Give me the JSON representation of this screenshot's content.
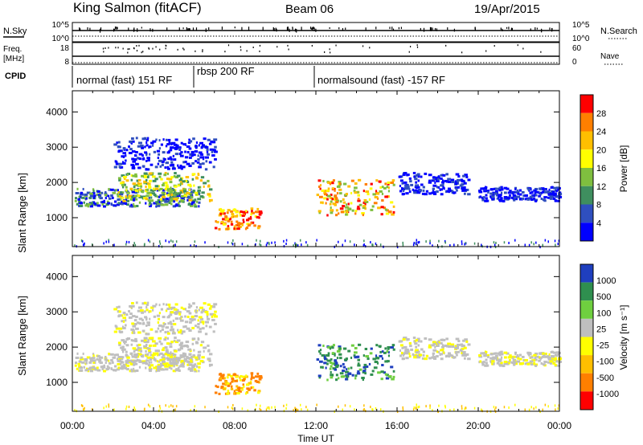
{
  "header": {
    "station": "King Salmon (fitACF)",
    "beam": "Beam 06",
    "date": "19/Apr/2015"
  },
  "summary_rows": {
    "nsky_label": "N.Sky",
    "nsky_ticks": [
      "10^5",
      "10^0"
    ],
    "nsearch_label": "N.Search",
    "nsearch_ticks": [
      "10^5",
      "10^0"
    ],
    "freq_label_1": "Freq.",
    "freq_label_2": "[MHz]",
    "freq_ticks": [
      "18",
      "8"
    ],
    "nave_label": "Nave",
    "nave_ticks": [
      "60",
      "0"
    ],
    "cpid_label": "CPID",
    "cpid_segments": [
      {
        "label": "normal (fast) 151 RF",
        "start_hour": 0.0
      },
      {
        "label": "rbsp 200 RF",
        "start_hour": 6.0
      },
      {
        "label": "normalsound (fast) -157 RF",
        "start_hour": 12.0
      }
    ]
  },
  "power_scale": {
    "title": "Power [dB]",
    "ticks": [
      "28",
      "24",
      "20",
      "16",
      "12",
      "8",
      "4"
    ],
    "colors": [
      "#ff0000",
      "#ff7f00",
      "#ffbf00",
      "#ffff00",
      "#7fbf3f",
      "#3f8f5f",
      "#2f4fbf",
      "#0000ff"
    ]
  },
  "velocity_scale": {
    "title": "Velocity [m s⁻¹]",
    "ticks": [
      "1000",
      "500",
      "100",
      "25",
      "-25",
      "-100",
      "-500",
      "-1000"
    ],
    "colors": [
      "#1f3fbf",
      "#2f8f4f",
      "#6fcf3f",
      "#bfbfbf",
      "#ffff00",
      "#ffbf00",
      "#ff7f00",
      "#ff0000"
    ]
  },
  "axes": {
    "ylabel": "Slant Range [km]",
    "xlabel": "Time UT",
    "yticks": [
      "1000",
      "2000",
      "3000",
      "4000"
    ],
    "xticks": [
      "00:00",
      "04:00",
      "08:00",
      "12:00",
      "16:00",
      "20:00",
      "00:00"
    ]
  },
  "chart_data": {
    "type": "heatmap",
    "x_range_hours": [
      0,
      24
    ],
    "y_range_km": [
      180,
      4600
    ],
    "panels": [
      "power",
      "velocity"
    ],
    "scatter_regions": [
      {
        "x_hours": [
          0.1,
          6.2
        ],
        "y_km": [
          1350,
          1850
        ],
        "power": "blue-green",
        "velocity": "grey"
      },
      {
        "x_hours": [
          2.2,
          6.8
        ],
        "y_km": [
          1500,
          2300
        ],
        "power": "green-yellow",
        "velocity": "grey"
      },
      {
        "x_hours": [
          2.0,
          7.0
        ],
        "y_km": [
          2400,
          3300
        ],
        "power": "blue",
        "velocity": "grey"
      },
      {
        "x_hours": [
          7.0,
          9.2
        ],
        "y_km": [
          700,
          1300
        ],
        "power": "red-yellow",
        "velocity": "orange"
      },
      {
        "x_hours": [
          12.0,
          15.8
        ],
        "y_km": [
          1100,
          2100
        ],
        "power": "yellow-red",
        "velocity": "green-blue"
      },
      {
        "x_hours": [
          16.0,
          19.5
        ],
        "y_km": [
          1700,
          2300
        ],
        "power": "blue",
        "velocity": "grey"
      },
      {
        "x_hours": [
          20.0,
          24.0
        ],
        "y_km": [
          1500,
          1900
        ],
        "power": "blue",
        "velocity": "grey"
      }
    ]
  }
}
